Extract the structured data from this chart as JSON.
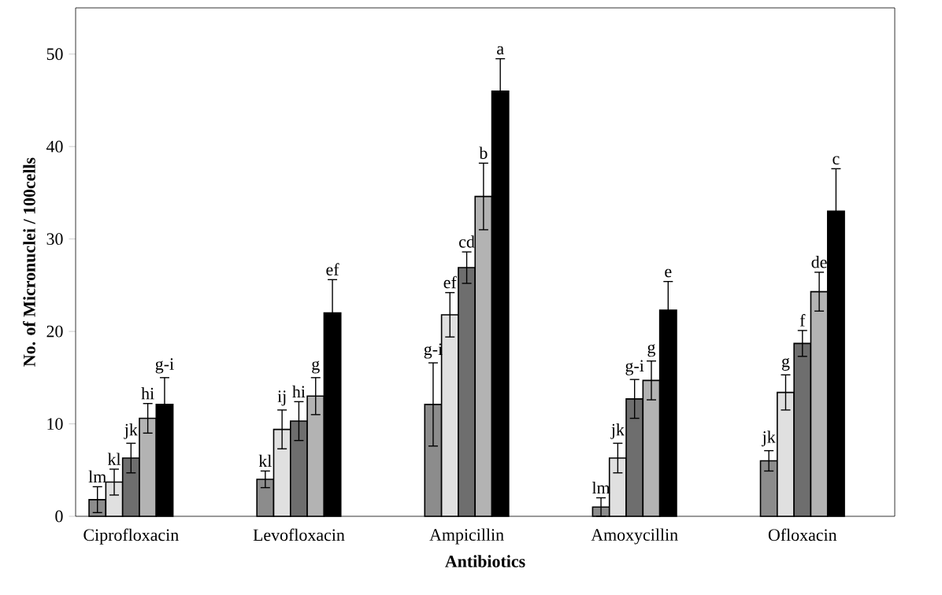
{
  "chart_data": {
    "type": "bar",
    "xlabel": "Antibiotics",
    "ylabel": "No. of Micronuclei / 100cells",
    "categories": [
      "Ciprofloxacin",
      "Levofloxacin",
      "Ampicillin",
      "Amoxycillin",
      "Ofloxacin"
    ],
    "series": [
      {
        "color": "#8c8c8c",
        "values": [
          1.8,
          4.0,
          12.1,
          1.0,
          6.0
        ],
        "errors": [
          1.4,
          0.9,
          4.5,
          1.0,
          1.1
        ],
        "value_labels": [
          "lm",
          "kl",
          "g-i",
          "lm",
          "jk"
        ]
      },
      {
        "color": "#e0e0e0",
        "values": [
          3.7,
          9.4,
          21.8,
          6.3,
          13.4
        ],
        "errors": [
          1.4,
          2.1,
          2.4,
          1.6,
          1.9
        ],
        "value_labels": [
          "kl",
          "ij",
          "ef",
          "jk",
          "g"
        ]
      },
      {
        "color": "#6e6e6e",
        "values": [
          6.3,
          10.3,
          26.9,
          12.7,
          18.7
        ],
        "errors": [
          1.6,
          2.1,
          1.7,
          2.1,
          1.4
        ],
        "value_labels": [
          "jk",
          "hi",
          "cd",
          "g-i",
          "f"
        ]
      },
      {
        "color": "#b3b3b3",
        "values": [
          10.6,
          13.0,
          34.6,
          14.7,
          24.3
        ],
        "errors": [
          1.6,
          2.0,
          3.6,
          2.1,
          2.1
        ],
        "value_labels": [
          "hi",
          "g",
          "b",
          "g",
          "de"
        ]
      },
      {
        "color": "#000000",
        "values": [
          12.1,
          22.0,
          46.0,
          22.3,
          33.0
        ],
        "errors": [
          2.9,
          3.6,
          3.5,
          3.1,
          4.6
        ],
        "value_labels": [
          "g-i",
          "ef",
          "a",
          "e",
          "c"
        ]
      }
    ],
    "ylim": [
      0,
      55
    ],
    "yticks": [
      0,
      10,
      20,
      30,
      40,
      50
    ],
    "grid": false
  }
}
